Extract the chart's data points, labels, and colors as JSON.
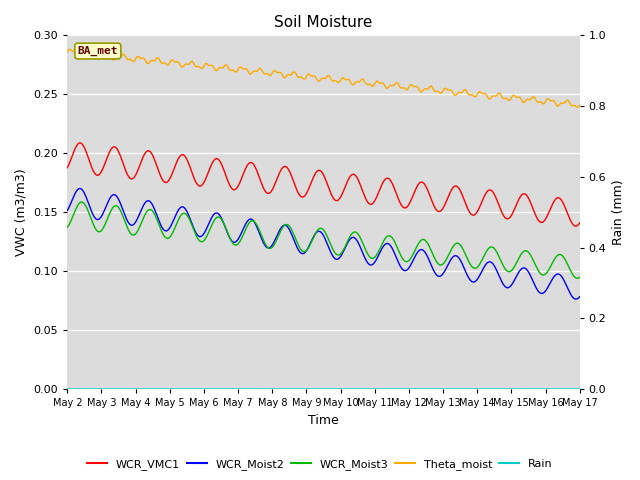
{
  "title": "Soil Moisture",
  "xlabel": "Time",
  "ylabel_left": "VWC (m3/m3)",
  "ylabel_right": "Rain (mm)",
  "xlim": [
    0,
    15
  ],
  "ylim_left": [
    0.0,
    0.3
  ],
  "ylim_right": [
    0.0,
    1.0
  ],
  "x_tick_labels": [
    "May 2",
    "May 3",
    "May 4",
    "May 5",
    "May 6",
    "May 7",
    "May 8",
    "May 9",
    "May 10",
    "May 11",
    "May 12",
    "May 13",
    "May 14",
    "May 15",
    "May 16",
    "May 17"
  ],
  "yticks_left": [
    0.0,
    0.05,
    0.1,
    0.15,
    0.2,
    0.25,
    0.3
  ],
  "yticks_right": [
    0.0,
    0.2,
    0.4,
    0.6,
    0.8,
    1.0
  ],
  "colors": {
    "WCR_VMC1": "#ff0000",
    "WCR_Moist2": "#0000ff",
    "WCR_Moist3": "#00bb00",
    "Theta_moist": "#ffaa00",
    "Rain": "#00cccc"
  },
  "legend_label": "BA_met",
  "bg_color": "#dcdcdc",
  "n_points": 1500
}
